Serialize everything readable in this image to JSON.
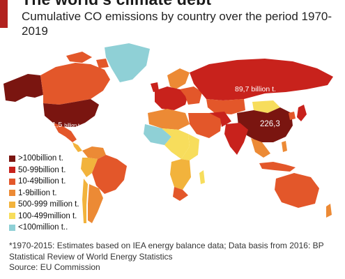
{
  "title": "The world's climate debt",
  "subtitle": "Cumulative CO emissions by country over the period 1970-2019",
  "labels": {
    "usa_value": "261,5",
    "usa_unit": "billion t.",
    "russia": "89,7 billion t.",
    "china": "226,3"
  },
  "legend": [
    {
      "label": ">100billion t.",
      "color": "#7a1510"
    },
    {
      "label": "50-99billion t.",
      "color": "#c8221c"
    },
    {
      "label": "10-49billion t.",
      "color": "#e3572a"
    },
    {
      "label": "1-9billion t.",
      "color": "#ec8a35"
    },
    {
      "label": "500-999 million t.",
      "color": "#f2b33c"
    },
    {
      "label": "100-499million t.",
      "color": "#f7dd5c"
    },
    {
      "label": "<100million t..",
      "color": "#8fd0d6"
    }
  ],
  "footer": {
    "note": "*1970-2015: Estimates based on IEA energy balance data; Data basis from 2016: BP Statistical Review of World Energy Statistics",
    "source": "Source: EU Commission"
  }
}
